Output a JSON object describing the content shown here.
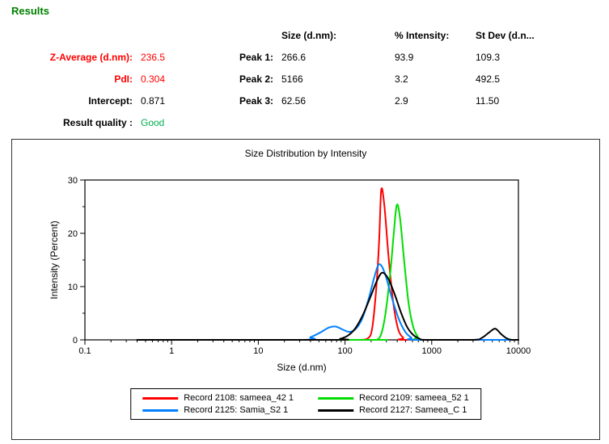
{
  "page": {
    "title": "Results"
  },
  "colors": {
    "results_title_green": "#008000",
    "alert_red": "#ff0000",
    "good_green": "#00b050"
  },
  "summary": {
    "columns": {
      "size": "Size (d.nm):",
      "intensity": "% Intensity:",
      "stdev": "St Dev (d.n..."
    },
    "stats": [
      {
        "label": "Z-Average (d.nm):",
        "value": "236.5"
      },
      {
        "label": "PdI:",
        "value": "0.304"
      },
      {
        "label": "Intercept:",
        "value": "0.871"
      },
      {
        "label": "Result quality :",
        "value": "Good"
      }
    ],
    "peaks": [
      {
        "label": "Peak 1:",
        "size": "266.6",
        "intensity": "93.9",
        "stdev": "109.3"
      },
      {
        "label": "Peak 2:",
        "size": "5166",
        "intensity": "3.2",
        "stdev": "492.5"
      },
      {
        "label": "Peak 3:",
        "size": "62.56",
        "intensity": "2.9",
        "stdev": "11.50"
      }
    ]
  },
  "chart_data": {
    "type": "line",
    "title": "Size Distribution by Intensity",
    "xlabel": "Size (d.nm)",
    "ylabel": "Intensity (Percent)",
    "x_scale": "log",
    "xlim": [
      0.1,
      10000
    ],
    "ylim": [
      0,
      30
    ],
    "x_ticks": [
      "0.1",
      "1",
      "10",
      "100",
      "1000",
      "10000"
    ],
    "y_ticks": [
      0,
      10,
      20,
      30
    ],
    "grid": false,
    "legend_position": "bottom",
    "series": [
      {
        "name": "Record 2108: sameea_42 1",
        "color": "#ff0000",
        "points": [
          [
            0.4,
            0
          ],
          [
            100,
            0
          ],
          [
            150,
            0
          ],
          [
            180,
            0.2
          ],
          [
            205,
            2
          ],
          [
            230,
            10
          ],
          [
            248,
            19
          ],
          [
            262,
            28.2
          ],
          [
            285,
            25
          ],
          [
            320,
            15
          ],
          [
            360,
            7
          ],
          [
            410,
            2
          ],
          [
            470,
            0.4
          ],
          [
            530,
            0
          ],
          [
            10000,
            0
          ]
        ]
      },
      {
        "name": "Record 2109: sameea_52 1",
        "color": "#00dd00",
        "points": [
          [
            0.4,
            0
          ],
          [
            180,
            0
          ],
          [
            230,
            0
          ],
          [
            260,
            1
          ],
          [
            290,
            4.5
          ],
          [
            330,
            12
          ],
          [
            365,
            20
          ],
          [
            395,
            25.3
          ],
          [
            430,
            23
          ],
          [
            480,
            15
          ],
          [
            540,
            7
          ],
          [
            610,
            2.5
          ],
          [
            690,
            0.6
          ],
          [
            780,
            0
          ],
          [
            10000,
            0
          ]
        ]
      },
      {
        "name": "Record 2125: Samia_S2 1",
        "color": "#0080ff",
        "points": [
          [
            0.4,
            0
          ],
          [
            30,
            0
          ],
          [
            40,
            0.5
          ],
          [
            52,
            1.4
          ],
          [
            65,
            2.3
          ],
          [
            78,
            2.5
          ],
          [
            95,
            1.9
          ],
          [
            112,
            1.5
          ],
          [
            132,
            2
          ],
          [
            158,
            4
          ],
          [
            188,
            7.8
          ],
          [
            218,
            11.8
          ],
          [
            248,
            14.2
          ],
          [
            288,
            12.5
          ],
          [
            345,
            8
          ],
          [
            415,
            4
          ],
          [
            495,
            1.5
          ],
          [
            585,
            0.4
          ],
          [
            670,
            0
          ],
          [
            10000,
            0
          ]
        ]
      },
      {
        "name": "Record 2127: Sameea_C 1",
        "color": "#000000",
        "points": [
          [
            0.4,
            0
          ],
          [
            70,
            0
          ],
          [
            88,
            0.2
          ],
          [
            108,
            0.8
          ],
          [
            132,
            2.2
          ],
          [
            162,
            4.8
          ],
          [
            198,
            8.2
          ],
          [
            232,
            11
          ],
          [
            268,
            12.6
          ],
          [
            315,
            11.5
          ],
          [
            375,
            8.5
          ],
          [
            445,
            5
          ],
          [
            525,
            2.3
          ],
          [
            615,
            0.9
          ],
          [
            730,
            0.2
          ],
          [
            860,
            0
          ],
          [
            3000,
            0
          ],
          [
            3800,
            0.4
          ],
          [
            4600,
            1.4
          ],
          [
            5400,
            2.1
          ],
          [
            6300,
            1.1
          ],
          [
            7300,
            0.3
          ],
          [
            8400,
            0
          ],
          [
            10000,
            0
          ]
        ]
      }
    ]
  }
}
